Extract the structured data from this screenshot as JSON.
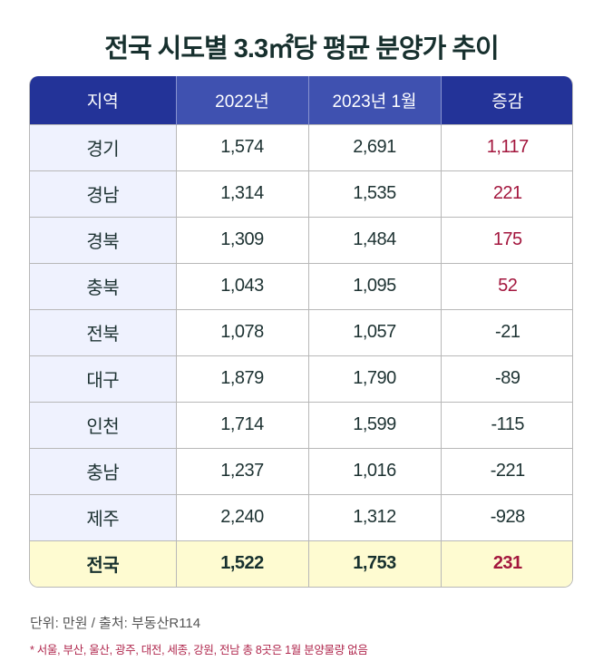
{
  "title": "전국 시도별 3.3㎡당 평균 분양가 추이",
  "table": {
    "headers": [
      "지역",
      "2022년",
      "2023년 1월",
      "증감"
    ],
    "rows": [
      {
        "region": "경기",
        "y2022": "1,574",
        "y2023jan": "2,691",
        "change": "1,117",
        "positive": true
      },
      {
        "region": "경남",
        "y2022": "1,314",
        "y2023jan": "1,535",
        "change": "221",
        "positive": true
      },
      {
        "region": "경북",
        "y2022": "1,309",
        "y2023jan": "1,484",
        "change": "175",
        "positive": true
      },
      {
        "region": "충북",
        "y2022": "1,043",
        "y2023jan": "1,095",
        "change": "52",
        "positive": true
      },
      {
        "region": "전북",
        "y2022": "1,078",
        "y2023jan": "1,057",
        "change": "-21",
        "positive": false
      },
      {
        "region": "대구",
        "y2022": "1,879",
        "y2023jan": "1,790",
        "change": "-89",
        "positive": false
      },
      {
        "region": "인천",
        "y2022": "1,714",
        "y2023jan": "1,599",
        "change": "-115",
        "positive": false
      },
      {
        "region": "충남",
        "y2022": "1,237",
        "y2023jan": "1,016",
        "change": "-221",
        "positive": false
      },
      {
        "region": "제주",
        "y2022": "2,240",
        "y2023jan": "1,312",
        "change": "-928",
        "positive": false
      }
    ],
    "total": {
      "region": "전국",
      "y2022": "1,522",
      "y2023jan": "1,753",
      "change": "231"
    }
  },
  "footer": {
    "unit_source": "단위: 만원 / 출처: 부동산R114",
    "note": "* 서울, 부산, 울산, 광주, 대전, 세종, 강원, 전남 총 8곳은 1월 분양물량 없음"
  },
  "colors": {
    "header_dark": "#233398",
    "header_light": "#3f51b0",
    "positive_text": "#a3163d",
    "region_bg": "#eff2fe",
    "total_bg": "#fefbd1"
  },
  "chart_data": {
    "type": "table",
    "title": "전국 시도별 3.3㎡당 평균 분양가 추이",
    "columns": [
      "지역",
      "2022년",
      "2023년 1월",
      "증감"
    ],
    "categories": [
      "경기",
      "경남",
      "경북",
      "충북",
      "전북",
      "대구",
      "인천",
      "충남",
      "제주",
      "전국"
    ],
    "series": [
      {
        "name": "2022년",
        "values": [
          1574,
          1314,
          1309,
          1043,
          1078,
          1879,
          1714,
          1237,
          2240,
          1522
        ]
      },
      {
        "name": "2023년 1월",
        "values": [
          2691,
          1535,
          1484,
          1095,
          1057,
          1790,
          1599,
          1016,
          1312,
          1753
        ]
      },
      {
        "name": "증감",
        "values": [
          1117,
          221,
          175,
          52,
          -21,
          -89,
          -115,
          -221,
          -928,
          231
        ]
      }
    ],
    "unit": "만원",
    "source": "부동산R114",
    "annotation": "* 서울, 부산, 울산, 광주, 대전, 세종, 강원, 전남 총 8곳은 1월 분양물량 없음"
  }
}
